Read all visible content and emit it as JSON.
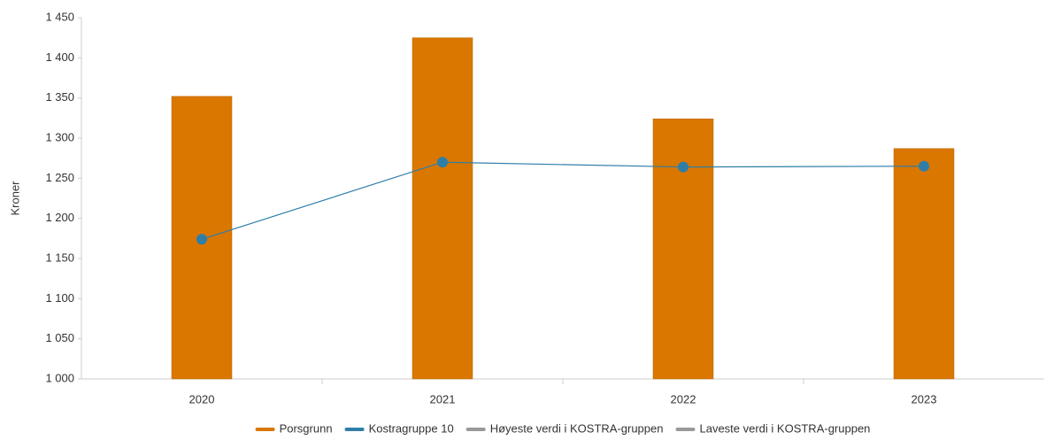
{
  "chart_data": {
    "type": "bar",
    "y_label": "Kroner",
    "categories": [
      "2020",
      "2021",
      "2022",
      "2023"
    ],
    "series": [
      {
        "name": "Porsgrunn",
        "type": "bar",
        "color": "#d97700",
        "values": [
          1352,
          1425,
          1324,
          1287
        ]
      },
      {
        "name": "Kostragruppe 10",
        "type": "line",
        "color": "#2f7ea8",
        "values": [
          1174,
          1270,
          1264,
          1265
        ]
      },
      {
        "name": "Høyeste verdi i KOSTRA-gruppen",
        "type": "line",
        "color": "#999999",
        "values": [
          null,
          null,
          null,
          null
        ]
      },
      {
        "name": "Laveste verdi i KOSTRA-gruppen",
        "type": "line",
        "color": "#999999",
        "values": [
          null,
          null,
          null,
          null
        ]
      }
    ],
    "ylim": [
      1000,
      1450
    ],
    "yticks": [
      {
        "value": 1000,
        "label": "1 000"
      },
      {
        "value": 1050,
        "label": "1 050"
      },
      {
        "value": 1100,
        "label": "1 100"
      },
      {
        "value": 1150,
        "label": "1 150"
      },
      {
        "value": 1200,
        "label": "1 200"
      },
      {
        "value": 1250,
        "label": "1 250"
      },
      {
        "value": 1300,
        "label": "1 300"
      },
      {
        "value": 1350,
        "label": "1 350"
      },
      {
        "value": 1400,
        "label": "1 400"
      },
      {
        "value": 1450,
        "label": "1 450"
      }
    ],
    "grid": false
  }
}
